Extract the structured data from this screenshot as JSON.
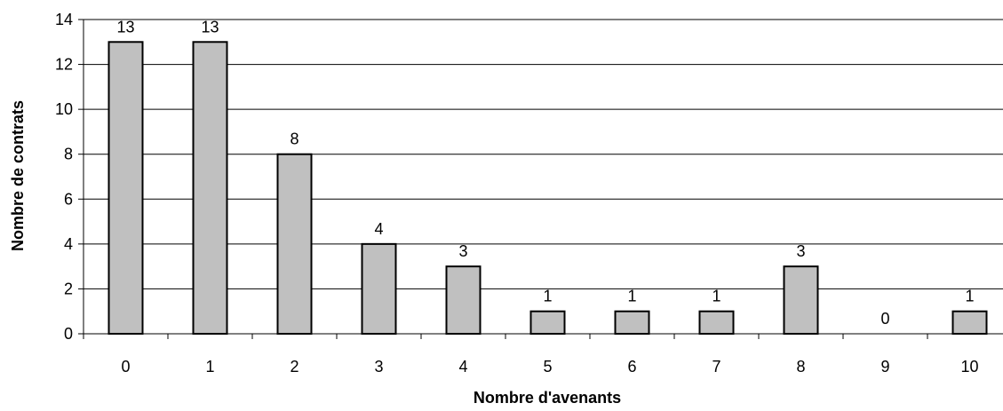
{
  "chart_data": {
    "type": "bar",
    "title": "",
    "xlabel": "Nombre d'avenants",
    "ylabel": "Nombre de contrats",
    "categories": [
      "0",
      "1",
      "2",
      "3",
      "4",
      "5",
      "6",
      "7",
      "8",
      "9",
      "10"
    ],
    "values": [
      13,
      13,
      8,
      4,
      3,
      1,
      1,
      1,
      3,
      0,
      1
    ],
    "data_labels": [
      "13",
      "13",
      "8",
      "4",
      "3",
      "1",
      "1",
      "1",
      "3",
      "0",
      "1"
    ],
    "ylim": [
      0,
      14
    ],
    "yticks": [
      0,
      2,
      4,
      6,
      8,
      10,
      12,
      14
    ],
    "grid": true,
    "legend": "none",
    "colors": {
      "bar_fill": "#c0c0c0",
      "bar_stroke": "#000000",
      "grid": "#000000"
    }
  }
}
